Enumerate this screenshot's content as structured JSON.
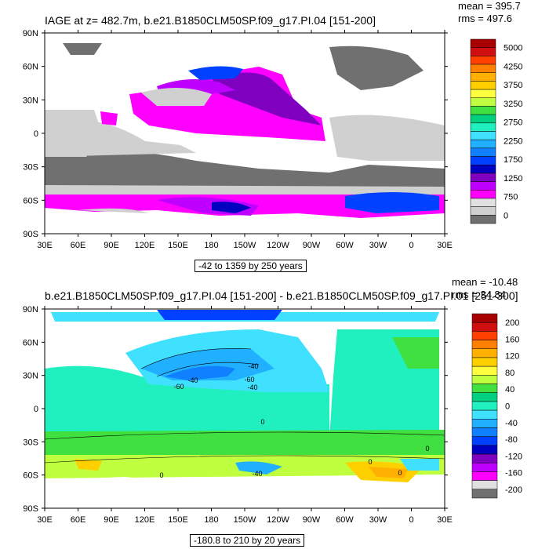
{
  "panel1": {
    "title": "IAGE at z= 482.7m, b.e21.B1850CLM50SP.f09_g17.PI.04 [151-200]",
    "mean": "mean = 395.7",
    "rms": "rms = 497.6",
    "range": "-42 to 1359 by 250 years",
    "lat_labels": [
      "90N",
      "60N",
      "30N",
      "0",
      "30S",
      "60S",
      "90S"
    ],
    "lon_labels": [
      "30E",
      "60E",
      "90E",
      "120E",
      "150E",
      "180",
      "150W",
      "120W",
      "90W",
      "60W",
      "30W",
      "0",
      "30E"
    ],
    "colorbar_labels": [
      "5000",
      "4250",
      "3750",
      "3250",
      "2750",
      "2250",
      "1750",
      "1250",
      "750",
      "0"
    ],
    "colorbar_colors": [
      "#a80000",
      "#d01010",
      "#ff4000",
      "#ff8000",
      "#ffb000",
      "#ffd000",
      "#ffff40",
      "#c0ff40",
      "#40e040",
      "#00d080",
      "#20f0c0",
      "#40e0ff",
      "#20b0ff",
      "#1080ff",
      "#0040ff",
      "#0000c0",
      "#8000c0",
      "#c000ff",
      "#ff00ff",
      "#e0e0e0",
      "#d0d0d0",
      "#707070"
    ]
  },
  "panel2": {
    "title": "b.e21.B1850CLM50SP.f09_g17.PI.04 [151-200] - b.e21.B1850CLM50SP.f09_g17.PI.01 [251-300]",
    "mean": "mean = -10.48",
    "rms": "rms = 34.84",
    "range": "-180.8 to 210 by 20 years",
    "lat_labels": [
      "90N",
      "60N",
      "30N",
      "0",
      "30S",
      "60S",
      "90S"
    ],
    "lon_labels": [
      "30E",
      "60E",
      "90E",
      "120E",
      "150E",
      "180",
      "150W",
      "120W",
      "90W",
      "60W",
      "30W",
      "0",
      "30E"
    ],
    "colorbar_labels": [
      "200",
      "160",
      "120",
      "80",
      "40",
      "0",
      "-40",
      "-80",
      "-120",
      "-160",
      "-200"
    ],
    "colorbar_colors": [
      "#a80000",
      "#d01010",
      "#ff4000",
      "#ff8000",
      "#ffb000",
      "#ffd000",
      "#ffff40",
      "#c0ff40",
      "#40e040",
      "#00d080",
      "#20f0c0",
      "#40e0ff",
      "#20b0ff",
      "#1080ff",
      "#0040ff",
      "#0000c0",
      "#8000c0",
      "#c000ff",
      "#ff00ff",
      "#e0e0e0",
      "#707070"
    ],
    "contour_labels": [
      "-60",
      "-40",
      "-40",
      "-60",
      "-40",
      "0",
      "0",
      "0",
      "-40",
      "0",
      "0"
    ]
  }
}
